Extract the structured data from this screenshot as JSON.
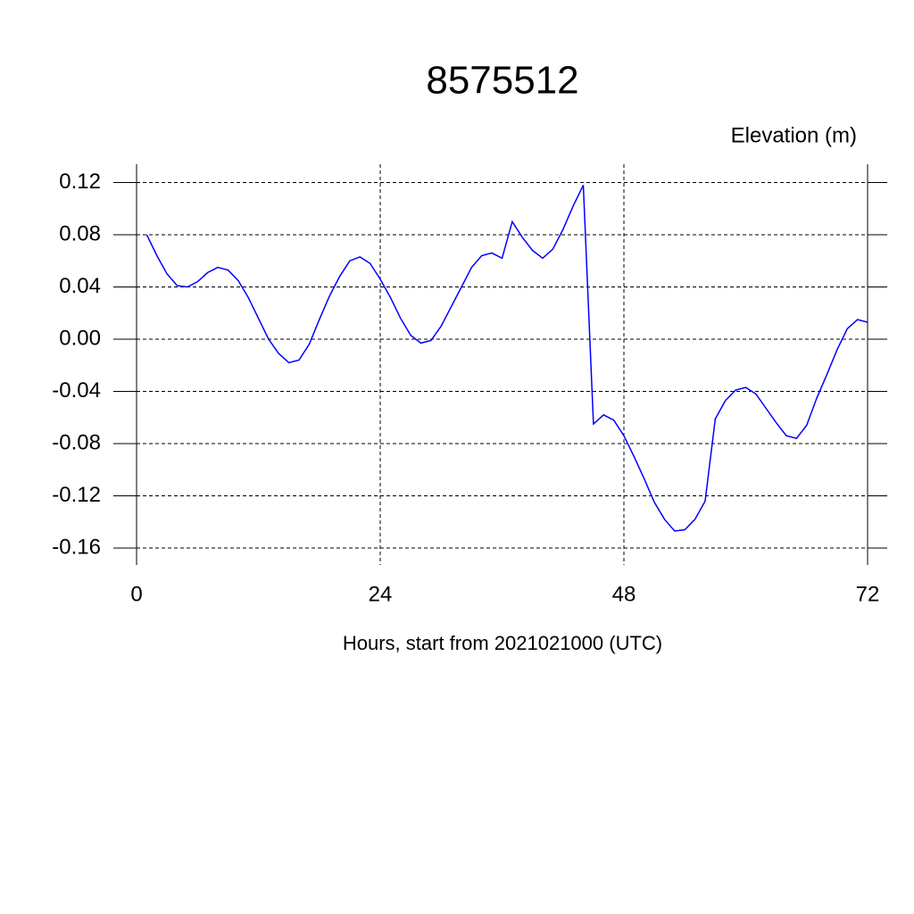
{
  "chart_data": {
    "type": "line",
    "title": "8575512",
    "subtitle": "Elevation (m)",
    "x_label": "Hours, start from 2021021000 (UTC)",
    "x": [
      1,
      2,
      3,
      4,
      5,
      6,
      7,
      8,
      9,
      10,
      11,
      12,
      13,
      14,
      15,
      16,
      17,
      18,
      19,
      20,
      21,
      22,
      23,
      24,
      25,
      26,
      27,
      28,
      29,
      30,
      31,
      32,
      33,
      34,
      35,
      36,
      37,
      38,
      39,
      40,
      41,
      42,
      43,
      44,
      45,
      46,
      47,
      48,
      49,
      50,
      51,
      52,
      53,
      54,
      55,
      56,
      57,
      58,
      59,
      60,
      61,
      62,
      63,
      64,
      65,
      66,
      67,
      68,
      69,
      70,
      71,
      72
    ],
    "series": [
      {
        "name": "Elevation",
        "color": "#0000ff",
        "values": [
          0.08,
          0.064,
          0.05,
          0.041,
          0.04,
          0.044,
          0.051,
          0.055,
          0.053,
          0.045,
          0.032,
          0.016,
          0.0,
          -0.011,
          -0.018,
          -0.016,
          -0.004,
          0.015,
          0.033,
          0.048,
          0.06,
          0.063,
          0.058,
          0.046,
          0.032,
          0.016,
          0.003,
          -0.003,
          -0.001,
          0.01,
          0.025,
          0.04,
          0.055,
          0.064,
          0.066,
          0.062,
          0.09,
          0.078,
          0.068,
          0.062,
          0.069,
          0.084,
          0.102,
          0.118,
          -0.065,
          -0.058,
          -0.062,
          -0.074,
          -0.09,
          -0.107,
          -0.125,
          -0.138,
          -0.147,
          -0.146,
          -0.138,
          -0.124,
          -0.061,
          -0.047,
          -0.039,
          -0.037,
          -0.042,
          -0.053,
          -0.064,
          -0.074,
          -0.076,
          -0.066,
          -0.045,
          -0.027,
          -0.008,
          0.008,
          0.015,
          0.013
        ]
      }
    ],
    "xlim": [
      0,
      72
    ],
    "xticks": [
      0,
      24,
      48,
      72
    ],
    "ylim": [
      -0.173,
      0.134
    ],
    "yticks": [
      0.12,
      0.08,
      0.04,
      {
        "value": 0,
        "label": "0.00"
      },
      -0.04,
      -0.08,
      -0.12,
      -0.16
    ],
    "grid": true
  }
}
